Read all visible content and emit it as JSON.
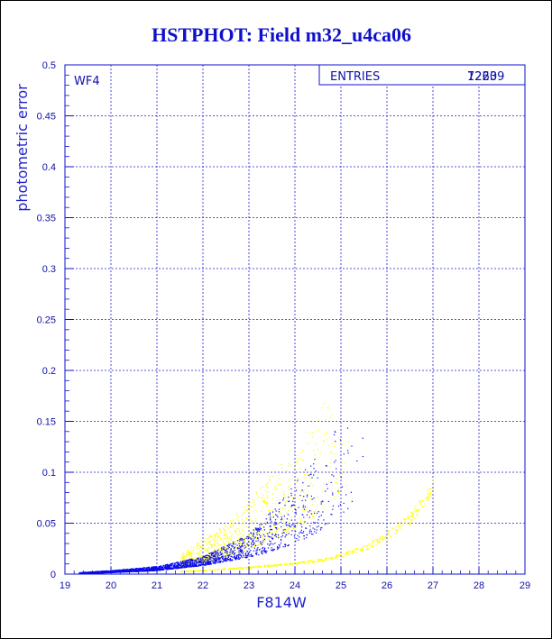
{
  "chart_data": {
    "type": "scatter",
    "title": "HSTPHOT: Field m32_u4ca06",
    "xlabel": "F814W",
    "ylabel": "photometric error",
    "panel_label": "WF4",
    "stats_box": {
      "label": "ENTRIES",
      "values": [
        "12209",
        "7263"
      ]
    },
    "xlim": [
      19,
      29
    ],
    "ylim": [
      0,
      0.5
    ],
    "xticks": [
      "19",
      "20",
      "21",
      "22",
      "23",
      "24",
      "25",
      "26",
      "27",
      "28",
      "29"
    ],
    "yticks": [
      "0",
      "0.05",
      "0.1",
      "0.15",
      "0.2",
      "0.25",
      "0.3",
      "0.35",
      "0.4",
      "0.45",
      "0.5"
    ],
    "grid": true,
    "series": [
      {
        "color": "#0a0aee",
        "count": 12209,
        "envelope": {
          "x": [
            19.3,
            20.0,
            21.0,
            22.0,
            23.0,
            23.5,
            24.0,
            24.5,
            25.0,
            25.3,
            25.6
          ],
          "y_low": [
            0.001,
            0.002,
            0.004,
            0.009,
            0.017,
            0.023,
            0.031,
            0.042,
            0.058,
            0.07,
            0.09
          ],
          "y_high": [
            0.002,
            0.004,
            0.008,
            0.018,
            0.04,
            0.065,
            0.09,
            0.12,
            0.16,
            0.19,
            0.21
          ]
        }
      },
      {
        "color": "#ffff00",
        "count": 7263,
        "envelope": {
          "x": [
            21.5,
            22.0,
            22.5,
            23.0,
            23.5,
            24.0,
            24.5,
            25.0,
            25.3
          ],
          "y_low": [
            0.008,
            0.012,
            0.018,
            0.025,
            0.035,
            0.045,
            0.06,
            0.08,
            0.1
          ],
          "y_high": [
            0.02,
            0.035,
            0.05,
            0.075,
            0.1,
            0.13,
            0.16,
            0.2,
            0.21
          ]
        },
        "sequence": {
          "x": [
            21.5,
            22.0,
            23.0,
            24.0,
            24.5,
            25.0,
            25.5,
            26.0,
            26.5,
            27.0
          ],
          "y": [
            0.003,
            0.004,
            0.007,
            0.011,
            0.014,
            0.019,
            0.026,
            0.038,
            0.055,
            0.085
          ]
        }
      }
    ]
  }
}
